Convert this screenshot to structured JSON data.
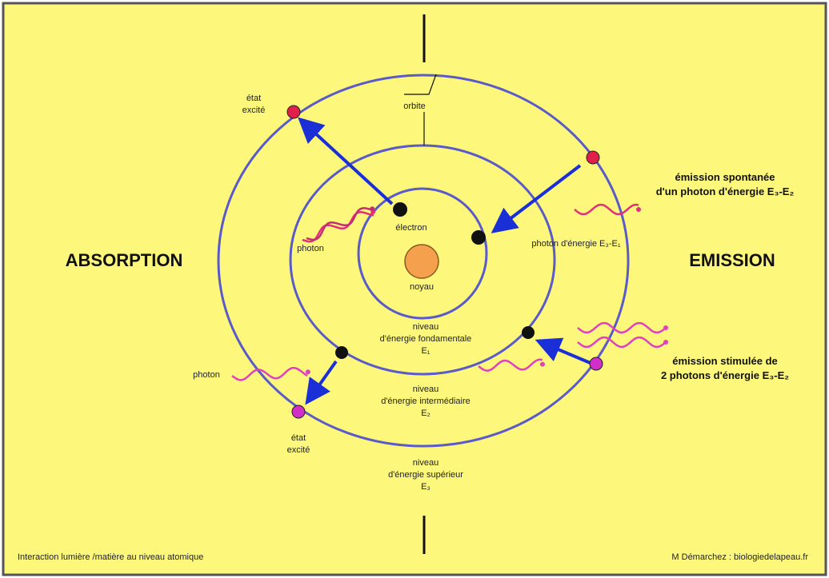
{
  "left_title": "ABSORPTION",
  "right_title": "EMISSION",
  "orbit_label": "orbite",
  "nucleus_label": "noyau",
  "electron_label": "électron",
  "photon_left_top": "photon",
  "photon_left_bottom": "photon",
  "photon_right": "photon d'énergie E₃-E₁",
  "excited_top": [
    "état",
    "excité"
  ],
  "excited_bottom": [
    "état",
    "excité"
  ],
  "spontaneous": [
    "émission spontanée",
    "d'un photon d'énergie E₃-E₂"
  ],
  "stimulated": [
    "émission stimulée de",
    "2 photons d'énergie E₃-E₂"
  ],
  "level_1": [
    "niveau",
    "d'énergie fondamentale",
    "E₁"
  ],
  "level_2": [
    "niveau",
    "d'énergie intermédiaire",
    "E₂"
  ],
  "level_3": [
    "niveau",
    "d'énergie supérieur",
    "E₃"
  ],
  "footer_left": "Interaction lumière /matière au niveau atomique",
  "footer_right": "M Démarchez : biologiedelapeau.fr"
}
